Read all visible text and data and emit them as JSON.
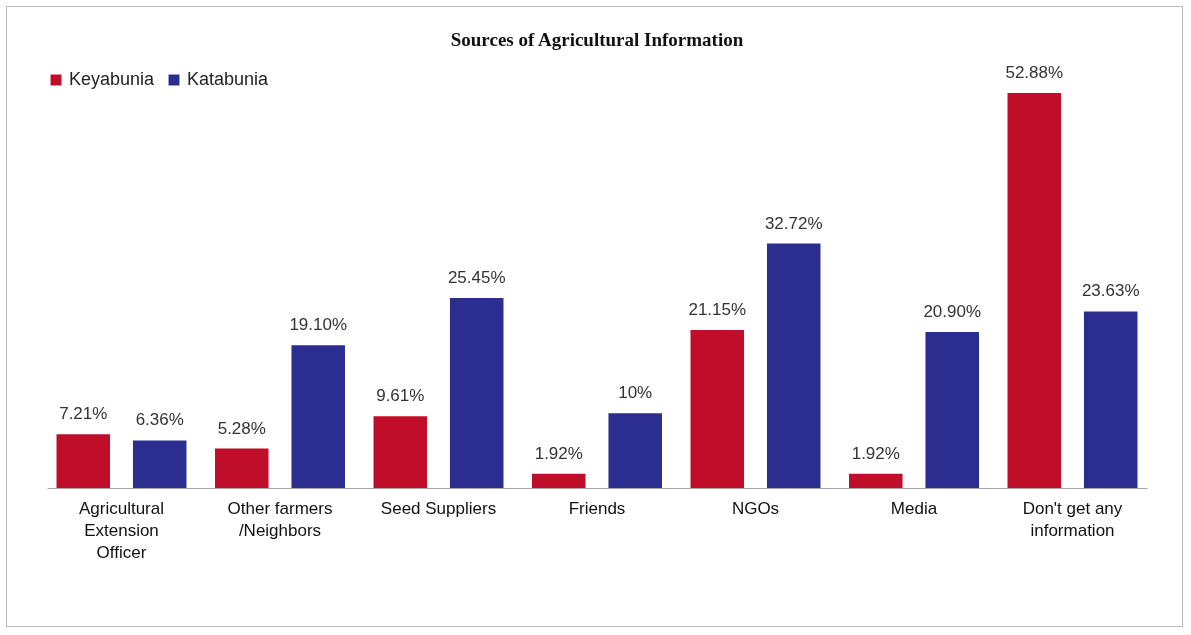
{
  "chart_data": {
    "type": "bar",
    "title": "Sources of Agricultural Information",
    "categories": [
      "Agricultural Extension Officer",
      "Other farmers /Neighbors",
      "Seed Suppliers",
      "Friends",
      "NGOs",
      "Media",
      "Don't get any information"
    ],
    "series": [
      {
        "name": "Keyabunia",
        "color": "#c00d2a",
        "values": [
          7.21,
          5.28,
          9.61,
          1.92,
          21.15,
          1.92,
          52.88
        ],
        "value_labels": [
          "7.21%",
          "5.28%",
          "9.61%",
          "1.92%",
          "21.15%",
          "1.92%",
          "52.88%"
        ]
      },
      {
        "name": "Katabunia",
        "color": "#2b2e8f",
        "values": [
          6.36,
          19.1,
          25.45,
          10,
          32.72,
          20.9,
          23.63
        ],
        "value_labels": [
          "6.36%",
          "19.10%",
          "25.45%",
          "10%",
          "32.72%",
          "20.90%",
          "23.63%"
        ]
      }
    ],
    "legend": "top",
    "grid": false,
    "tick_labels": "x"
  }
}
